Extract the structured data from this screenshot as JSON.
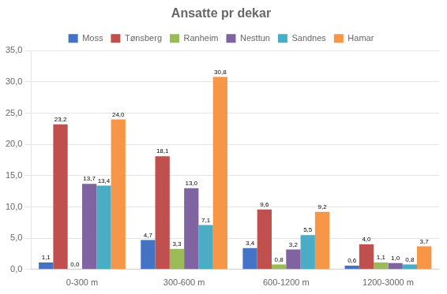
{
  "chart_data": {
    "type": "bar",
    "title": "Ansatte pr dekar",
    "categories": [
      "0-300 m",
      "300-600 m",
      "600-1200 m",
      "1200-3000 m"
    ],
    "series": [
      {
        "name": "Moss",
        "color": "#4472C4",
        "values": [
          1.1,
          4.7,
          3.4,
          0.6
        ],
        "value_labels": [
          "1,1",
          "4,7",
          "3,4",
          "0,6"
        ]
      },
      {
        "name": "Tønsberg",
        "color": "#C0504D",
        "values": [
          23.2,
          18.1,
          9.6,
          4.0
        ],
        "value_labels": [
          "23,2",
          "18,1",
          "9,6",
          "4,0"
        ]
      },
      {
        "name": "Ranheim",
        "color": "#9BBB59",
        "values": [
          0.0,
          3.3,
          0.8,
          1.1
        ],
        "value_labels": [
          "0,0",
          "3,3",
          "0,8",
          "1,1"
        ]
      },
      {
        "name": "Nesttun",
        "color": "#8064A2",
        "values": [
          13.7,
          13.0,
          3.2,
          1.0
        ],
        "value_labels": [
          "13,7",
          "13,0",
          "3,2",
          "1,0"
        ]
      },
      {
        "name": "Sandnes",
        "color": "#4BACC6",
        "values": [
          13.4,
          7.1,
          5.5,
          0.8
        ],
        "value_labels": [
          "13,4",
          "7,1",
          "5,5",
          "0,8"
        ]
      },
      {
        "name": "Hamar",
        "color": "#F79646",
        "values": [
          24.0,
          30.8,
          9.2,
          3.7
        ],
        "value_labels": [
          "24,0",
          "30,8",
          "9,2",
          "3,7"
        ]
      }
    ],
    "ylim": [
      0,
      35
    ],
    "yticks": [
      {
        "value": 0,
        "label": "0,0"
      },
      {
        "value": 5,
        "label": "5,0"
      },
      {
        "value": 10,
        "label": "10,0"
      },
      {
        "value": 15,
        "label": "15,0"
      },
      {
        "value": 20,
        "label": "20,0"
      },
      {
        "value": 25,
        "label": "25,0"
      },
      {
        "value": 30,
        "label": "30,0"
      },
      {
        "value": 35,
        "label": "35,0"
      }
    ],
    "grid": true,
    "legend": "top",
    "data_labels": true
  }
}
